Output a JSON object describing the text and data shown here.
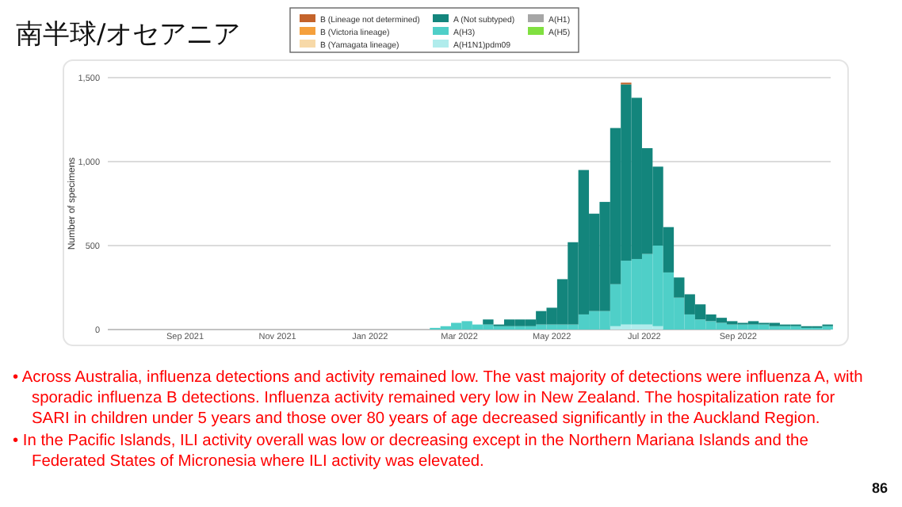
{
  "chart_data": {
    "type": "bar",
    "stacked": true,
    "title": "南半球/オセアニア",
    "ylabel": "Number of specimens",
    "x": [
      "2022-02-13",
      "2022-02-20",
      "2022-02-27",
      "2022-03-06",
      "2022-03-13",
      "2022-03-20",
      "2022-03-27",
      "2022-04-03",
      "2022-04-10",
      "2022-04-17",
      "2022-04-24",
      "2022-05-01",
      "2022-05-08",
      "2022-05-15",
      "2022-05-22",
      "2022-05-29",
      "2022-06-05",
      "2022-06-12",
      "2022-06-19",
      "2022-06-26",
      "2022-07-03",
      "2022-07-10",
      "2022-07-17",
      "2022-07-24",
      "2022-07-31",
      "2022-08-07",
      "2022-08-14",
      "2022-08-21",
      "2022-08-28",
      "2022-09-04",
      "2022-09-11",
      "2022-09-18",
      "2022-09-25",
      "2022-10-02",
      "2022-10-09",
      "2022-10-16",
      "2022-10-23",
      "2022-10-30"
    ],
    "series": [
      {
        "name": "A(H1N1)pdm09",
        "color": "#b0ecec",
        "values": [
          0,
          0,
          0,
          0,
          0,
          0,
          0,
          0,
          0,
          0,
          0,
          0,
          0,
          0,
          0,
          0,
          0,
          20,
          30,
          30,
          30,
          20,
          null,
          0,
          0,
          0,
          0,
          0,
          0,
          0,
          0,
          0,
          0,
          0,
          0,
          0,
          0,
          0
        ]
      },
      {
        "name": "A(H3)",
        "color": "#4fcfc8",
        "values": [
          10,
          20,
          40,
          50,
          30,
          30,
          20,
          20,
          20,
          20,
          30,
          30,
          30,
          30,
          90,
          110,
          110,
          250,
          380,
          390,
          420,
          480,
          340,
          190,
          90,
          60,
          50,
          40,
          30,
          30,
          30,
          30,
          20,
          20,
          20,
          10,
          10,
          20
        ]
      },
      {
        "name": "A (Not subtyped)",
        "color": "#13857c",
        "values": [
          0,
          0,
          0,
          0,
          0,
          30,
          10,
          40,
          40,
          40,
          80,
          100,
          270,
          490,
          860,
          580,
          650,
          930,
          1050,
          960,
          630,
          470,
          270,
          120,
          120,
          90,
          40,
          30,
          20,
          10,
          20,
          10,
          20,
          10,
          10,
          10,
          10,
          10
        ]
      },
      {
        "name": "B (Lineage not determined)",
        "color": "#c4632b",
        "values": [
          0,
          0,
          0,
          0,
          0,
          0,
          0,
          0,
          0,
          0,
          0,
          0,
          0,
          0,
          0,
          0,
          0,
          0,
          10,
          0,
          0,
          0,
          0,
          0,
          0,
          0,
          0,
          0,
          0,
          0,
          0,
          0,
          0,
          0,
          0,
          0,
          0,
          0
        ]
      },
      {
        "name": "B (Victoria lineage)",
        "color": "#f5a03c",
        "values": [
          0,
          0,
          0,
          0,
          0,
          0,
          0,
          0,
          0,
          0,
          0,
          0,
          0,
          0,
          0,
          0,
          0,
          0,
          0,
          0,
          0,
          0,
          0,
          0,
          0,
          0,
          0,
          0,
          0,
          0,
          0,
          0,
          0,
          0,
          0,
          0,
          0,
          0
        ]
      },
      {
        "name": "B (Yamagata lineage)",
        "color": "#f7d9a8",
        "values": [
          0,
          0,
          0,
          0,
          0,
          0,
          0,
          0,
          0,
          0,
          0,
          0,
          0,
          0,
          0,
          0,
          0,
          0,
          0,
          0,
          0,
          0,
          0,
          0,
          0,
          0,
          0,
          0,
          0,
          0,
          0,
          0,
          0,
          0,
          0,
          0,
          0,
          0
        ]
      },
      {
        "name": "A(H1)",
        "color": "#a6a6a6",
        "values": [
          0,
          0,
          0,
          0,
          0,
          0,
          0,
          0,
          0,
          0,
          0,
          0,
          0,
          0,
          0,
          0,
          0,
          0,
          0,
          0,
          0,
          0,
          0,
          0,
          0,
          0,
          0,
          0,
          0,
          0,
          0,
          0,
          0,
          0,
          0,
          0,
          0,
          0
        ]
      },
      {
        "name": "A(H5)",
        "color": "#80e040",
        "values": [
          0,
          0,
          0,
          0,
          0,
          0,
          0,
          0,
          0,
          0,
          0,
          0,
          0,
          0,
          0,
          0,
          0,
          0,
          0,
          0,
          0,
          0,
          0,
          0,
          0,
          0,
          0,
          0,
          0,
          0,
          0,
          0,
          0,
          0,
          0,
          0,
          0,
          0
        ]
      }
    ],
    "xlim": [
      "2021-07-12",
      "2022-11-01"
    ],
    "xticks": [
      {
        "value": "2021-09-01",
        "label": "Sep 2021"
      },
      {
        "value": "2021-11-01",
        "label": "Nov 2021"
      },
      {
        "value": "2022-01-01",
        "label": "Jan 2022"
      },
      {
        "value": "2022-03-01",
        "label": "Mar 2022"
      },
      {
        "value": "2022-05-01",
        "label": "May 2022"
      },
      {
        "value": "2022-07-01",
        "label": "Jul 2022"
      },
      {
        "value": "2022-09-01",
        "label": "Sep 2022"
      }
    ],
    "ylim": [
      0,
      1500
    ],
    "yticks": [
      0,
      500,
      {
        "value": 1000,
        "label": "1,000"
      },
      {
        "value": 1500,
        "label": "1,500"
      }
    ],
    "grid": "y",
    "legend": "top",
    "annotations": [
      "• Across Australia, influenza detections and activity remained low. The vast majority of detections were influenza A, with sporadic influenza B detections. Influenza activity remained very low in New Zealand. The hospitalization rate for SARI in children under 5 years and those over 80 years of age decreased significantly in the Auckland Region.",
      "• In the Pacific Islands, ILI activity overall was low or decreasing except in the Northern Mariana Islands and the Federated States of Micronesia where ILI activity was elevated.",
      "86"
    ]
  }
}
